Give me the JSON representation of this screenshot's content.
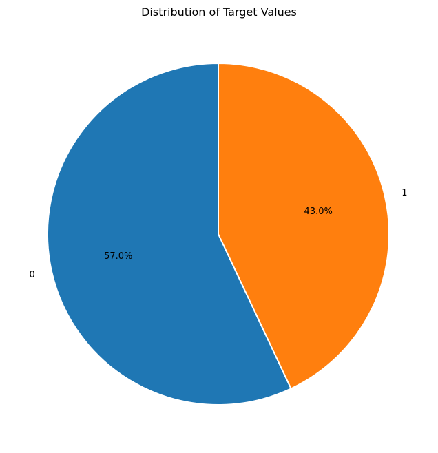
{
  "chart_data": {
    "type": "pie",
    "title": "Distribution of Target Values",
    "categories": [
      "0",
      "1"
    ],
    "values": [
      57.0,
      43.0
    ],
    "percent_labels": [
      "57.0%",
      "43.0%"
    ],
    "colors": [
      "#1f77b4",
      "#ff7f0e"
    ],
    "start_angle_deg": 90,
    "direction": "counterclockwise",
    "slice_edge_color": "#ffffff"
  }
}
